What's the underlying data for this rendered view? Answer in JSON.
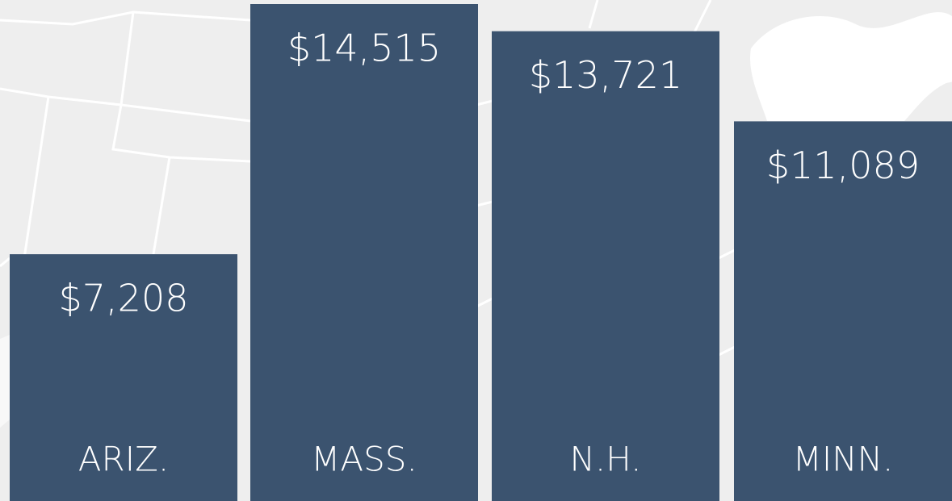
{
  "chart_data": {
    "type": "bar",
    "categories": [
      "ARIZ.",
      "MASS.",
      "N.H.",
      "MINN."
    ],
    "values": [
      7208,
      14515,
      13721,
      11089
    ],
    "value_labels": [
      "$7,208",
      "$14,515",
      "$13,721",
      "$11,089"
    ],
    "color": "#3b536f"
  }
}
